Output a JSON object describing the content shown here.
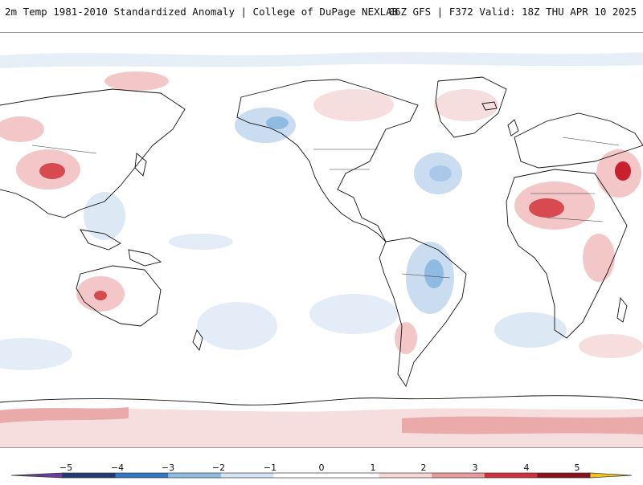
{
  "header": {
    "left_title": "2m Temp 1981-2010 Standardized Anomaly | College of DuPage NEXLAB",
    "right_title": "06Z GFS | F372 Valid: 18Z THU APR 10 2025"
  },
  "colorbar": {
    "ticks": [
      "−5",
      "−4",
      "−3",
      "−2",
      "−1",
      "0",
      "1",
      "2",
      "3",
      "4",
      "5"
    ],
    "colors": {
      "lt_neg5": "#6a3d9a",
      "neg5_neg4": "#1f3a6e",
      "neg4_neg3": "#2f78c4",
      "neg3_neg2": "#8fbbe3",
      "neg2_neg1": "#d5e4f3",
      "neg1_0": "#ffffff",
      "0_1": "#ffffff",
      "1_2": "#f7d6d6",
      "2_3": "#e89a9a",
      "3_4": "#d0303a",
      "4_5": "#8c0f1e",
      "gt_5": "#f2c417"
    }
  },
  "map": {
    "ocean_color": "#ffffff",
    "coast_color": "#111111",
    "warm_color": "#f3c7c7",
    "cool_color": "#c9dcf0"
  }
}
